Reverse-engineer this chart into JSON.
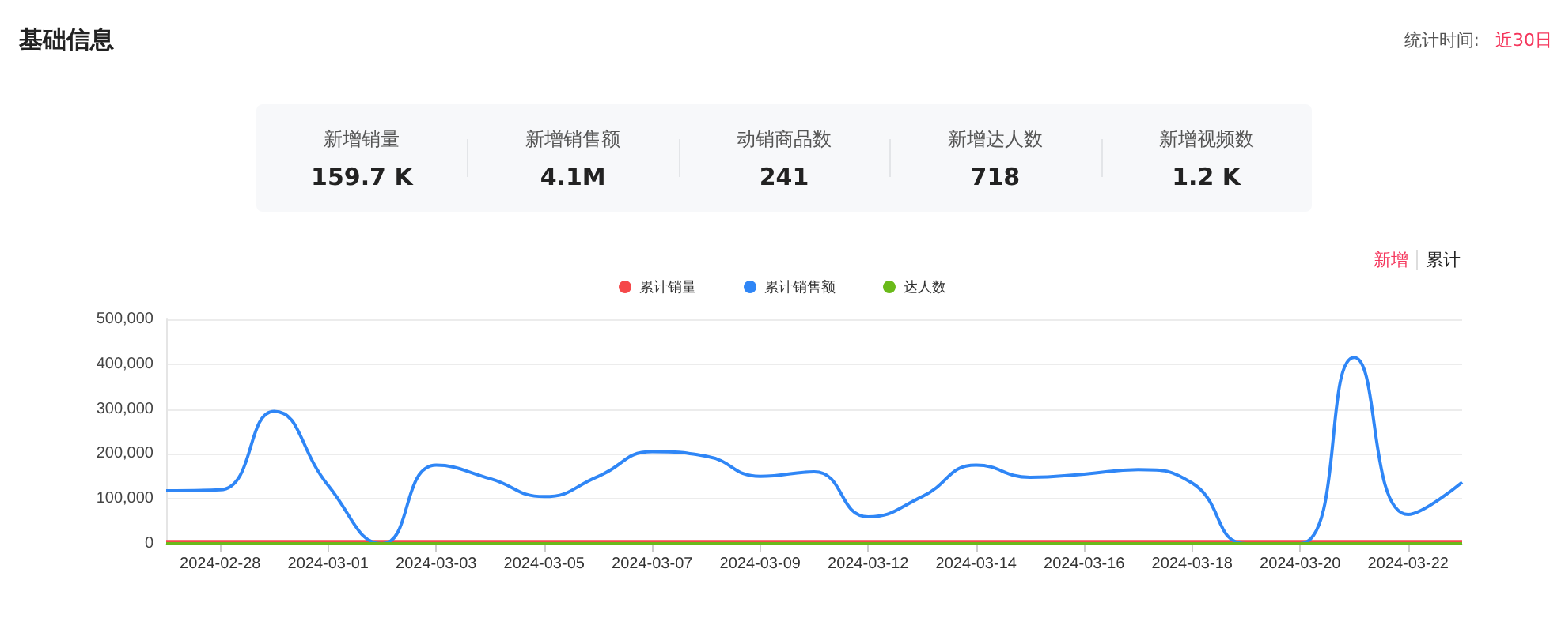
{
  "chart_data": {
    "type": "line",
    "title": "基础信息",
    "annotations": [
      "统计时间:",
      "近30日",
      "新增销量",
      "159.7 K",
      "新增销售额",
      "4.1M",
      "动销商品数",
      "241",
      "新增达人数",
      "718",
      "新增视频数",
      "1.2 K",
      "新增",
      "累计"
    ],
    "categories": [
      null,
      "2024-02-28",
      null,
      "2024-03-01",
      null,
      "2024-03-03",
      null,
      "2024-03-05",
      null,
      "2024-03-07",
      null,
      "2024-03-09",
      null,
      "2024-03-12",
      null,
      "2024-03-14",
      null,
      "2024-03-16",
      null,
      "2024-03-18",
      null,
      "2024-03-20",
      null,
      "2024-03-22",
      null
    ],
    "series": [
      {
        "name": "累计销量",
        "color": "#f5484a",
        "values": [
          5000,
          5000,
          5000,
          5000,
          5000,
          5000,
          5000,
          5000,
          5000,
          5000,
          5000,
          5000,
          5000,
          5000,
          5000,
          5000,
          5000,
          5000,
          5000,
          5000,
          5000,
          5000,
          5000,
          5000,
          5000
        ]
      },
      {
        "name": "累计销售额",
        "color": "#2f86f6",
        "values": [
          118000,
          120000,
          295000,
          130000,
          0,
          175000,
          145000,
          105000,
          150000,
          205000,
          195000,
          150000,
          160000,
          60000,
          105000,
          175000,
          148000,
          155000,
          165000,
          135000,
          0,
          0,
          415000,
          65000,
          137000
        ]
      },
      {
        "name": "达人数",
        "color": "#6aba1a",
        "values": [
          0,
          0,
          0,
          0,
          0,
          0,
          0,
          0,
          0,
          0,
          0,
          0,
          0,
          0,
          0,
          0,
          0,
          0,
          0,
          0,
          0,
          0,
          0,
          0,
          0
        ]
      }
    ],
    "ylim": [
      0,
      500000
    ],
    "yticks": [
      0,
      {
        "value": 100000,
        "label": "100,000"
      },
      {
        "value": 200000,
        "label": "200,000"
      },
      {
        "value": 300000,
        "label": "300,000"
      },
      {
        "value": 400000,
        "label": "400,000"
      },
      {
        "value": 500000,
        "label": "500,000"
      }
    ],
    "grid": "y",
    "legend": "top",
    "marker": "none",
    "line_style": "solid"
  }
}
